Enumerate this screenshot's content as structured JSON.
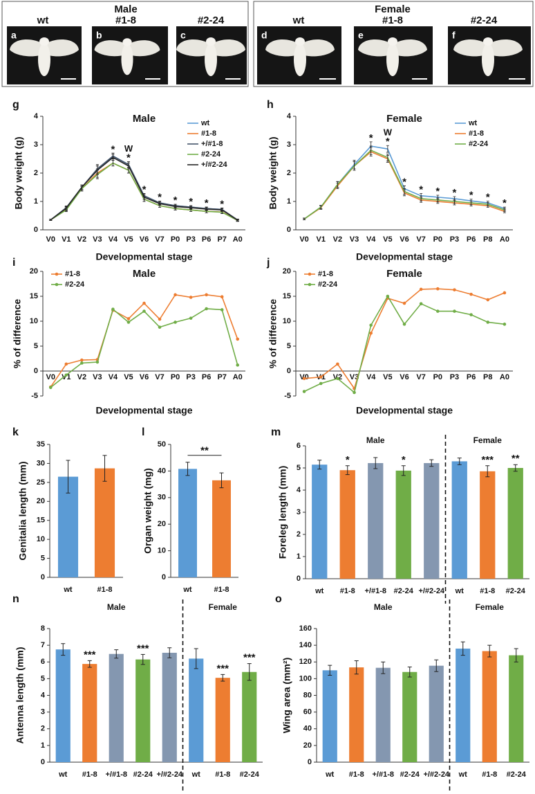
{
  "photos": {
    "male": {
      "title": "Male",
      "panels": [
        {
          "letter": "a",
          "label": "wt"
        },
        {
          "letter": "b",
          "label": "#1-8"
        },
        {
          "letter": "c",
          "label": "#2-24"
        }
      ]
    },
    "female": {
      "title": "Female",
      "panels": [
        {
          "letter": "d",
          "label": "wt"
        },
        {
          "letter": "e",
          "label": "#1-8"
        },
        {
          "letter": "f",
          "label": "#2-24"
        }
      ]
    }
  },
  "chart_data": [
    {
      "type": "line",
      "letter": "g",
      "title": "Male",
      "y_label": "Body weight (g)",
      "x_label": "Developmental stage",
      "categories": [
        "V0",
        "V1",
        "V2",
        "V3",
        "V4",
        "V5",
        "V6",
        "V7",
        "P0",
        "P3",
        "P6",
        "P7",
        "A0"
      ],
      "ylim": [
        0,
        4
      ],
      "yticks": [
        0,
        1,
        2,
        3,
        4
      ],
      "legend": "upper right",
      "markers": false,
      "series": [
        {
          "name": "wt",
          "color": "#5b9bd5",
          "values": [
            0.35,
            0.75,
            1.5,
            2.1,
            2.6,
            2.3,
            1.2,
            0.95,
            0.85,
            0.8,
            0.75,
            0.72,
            0.33
          ],
          "errors": [
            0.02,
            0.06,
            0.08,
            0.15,
            0.1,
            0.1,
            0.08,
            0.06,
            0.05,
            0.05,
            0.05,
            0.05,
            0.03
          ]
        },
        {
          "name": "#1-8",
          "color": "#ed7d31",
          "values": [
            0.35,
            0.72,
            1.45,
            2.0,
            2.35,
            2.1,
            1.08,
            0.85,
            0.75,
            0.7,
            0.65,
            0.63,
            0.33
          ],
          "errors": [
            0.02,
            0.06,
            0.08,
            0.15,
            0.1,
            0.1,
            0.08,
            0.06,
            0.05,
            0.05,
            0.05,
            0.05,
            0.03
          ]
        },
        {
          "name": "+/#1-8",
          "color": "#44546a",
          "values": [
            0.35,
            0.78,
            1.5,
            2.15,
            2.6,
            2.3,
            1.2,
            0.95,
            0.85,
            0.8,
            0.75,
            0.72,
            0.35
          ],
          "errors": [
            0.02,
            0.06,
            0.08,
            0.15,
            0.1,
            0.1,
            0.08,
            0.06,
            0.05,
            0.05,
            0.05,
            0.05,
            0.03
          ]
        },
        {
          "name": "#2-24",
          "color": "#70ad47",
          "values": [
            0.35,
            0.7,
            1.45,
            1.95,
            2.35,
            2.1,
            1.08,
            0.85,
            0.75,
            0.7,
            0.65,
            0.62,
            0.33
          ],
          "errors": [
            0.02,
            0.06,
            0.08,
            0.15,
            0.1,
            0.1,
            0.08,
            0.06,
            0.05,
            0.05,
            0.05,
            0.05,
            0.03
          ]
        },
        {
          "name": "+/#2-24",
          "color": "#262626",
          "values": [
            0.35,
            0.76,
            1.5,
            2.1,
            2.55,
            2.25,
            1.15,
            0.92,
            0.82,
            0.78,
            0.73,
            0.7,
            0.34
          ],
          "errors": [
            0.02,
            0.06,
            0.08,
            0.15,
            0.1,
            0.1,
            0.08,
            0.06,
            0.05,
            0.05,
            0.05,
            0.05,
            0.03
          ]
        }
      ],
      "significance": [
        null,
        null,
        null,
        null,
        "*",
        "*",
        "*",
        "*",
        "*",
        "*",
        "*",
        "*",
        null
      ],
      "significance_top": [
        null,
        null,
        null,
        null,
        null,
        "W",
        null,
        null,
        null,
        null,
        null,
        null,
        null
      ]
    },
    {
      "type": "line",
      "letter": "h",
      "title": "Female",
      "y_label": "Body weight (g)",
      "x_label": "Developmental stage",
      "categories": [
        "V0",
        "V1",
        "V2",
        "V3",
        "V4",
        "V5",
        "V6",
        "V7",
        "P0",
        "P3",
        "P6",
        "P8",
        "A0"
      ],
      "ylim": [
        0,
        4
      ],
      "yticks": [
        0,
        1,
        2,
        3,
        4
      ],
      "legend": "upper right",
      "markers": false,
      "series": [
        {
          "name": "wt",
          "color": "#5b9bd5",
          "values": [
            0.38,
            0.8,
            1.6,
            2.3,
            2.95,
            2.85,
            1.45,
            1.2,
            1.15,
            1.1,
            1.02,
            0.95,
            0.75
          ],
          "errors": [
            0.03,
            0.06,
            0.1,
            0.15,
            0.15,
            0.12,
            0.1,
            0.08,
            0.07,
            0.07,
            0.06,
            0.06,
            0.05
          ]
        },
        {
          "name": "#1-8",
          "color": "#ed7d31",
          "values": [
            0.38,
            0.78,
            1.55,
            2.25,
            2.75,
            2.5,
            1.3,
            1.05,
            1.0,
            0.95,
            0.9,
            0.85,
            0.65
          ],
          "errors": [
            0.03,
            0.06,
            0.1,
            0.15,
            0.15,
            0.12,
            0.1,
            0.08,
            0.07,
            0.07,
            0.06,
            0.06,
            0.05
          ]
        },
        {
          "name": "#2-24",
          "color": "#70ad47",
          "values": [
            0.38,
            0.8,
            1.6,
            2.25,
            2.8,
            2.55,
            1.35,
            1.1,
            1.05,
            1.0,
            0.95,
            0.9,
            0.7
          ],
          "errors": [
            0.03,
            0.06,
            0.1,
            0.15,
            0.15,
            0.12,
            0.1,
            0.08,
            0.07,
            0.07,
            0.06,
            0.06,
            0.05
          ]
        }
      ],
      "significance": [
        null,
        null,
        null,
        null,
        "*",
        "*",
        "*",
        "*",
        "*",
        "*",
        "*",
        "*",
        "*"
      ],
      "significance_top": [
        null,
        null,
        null,
        null,
        null,
        "W",
        null,
        null,
        null,
        null,
        null,
        null,
        null
      ]
    },
    {
      "type": "line",
      "letter": "i",
      "title": "Male",
      "y_label": "% of difference",
      "x_label": "Developmental stage",
      "categories": [
        "V0",
        "V1",
        "V2",
        "V3",
        "V4",
        "V5",
        "V6",
        "V7",
        "P0",
        "P3",
        "P6",
        "P7",
        "A0"
      ],
      "ylim": [
        -5,
        20
      ],
      "yticks": [
        -5,
        0,
        5,
        10,
        15,
        20
      ],
      "legend": "upper left",
      "markers": true,
      "series": [
        {
          "name": "#1-8",
          "color": "#ed7d31",
          "values": [
            -3.2,
            1.4,
            2.2,
            2.3,
            12.2,
            10.5,
            13.6,
            10.4,
            15.3,
            14.8,
            15.3,
            14.9,
            6.4
          ]
        },
        {
          "name": "#2-24",
          "color": "#70ad47",
          "values": [
            -3.3,
            -0.8,
            1.6,
            1.8,
            12.4,
            9.8,
            12.0,
            8.8,
            9.8,
            10.6,
            12.5,
            12.3,
            1.2
          ]
        }
      ]
    },
    {
      "type": "line",
      "letter": "j",
      "title": "Female",
      "y_label": "% of difference",
      "x_label": "Developmental stage",
      "categories": [
        "V0",
        "V1",
        "V2",
        "V3",
        "V4",
        "V5",
        "V6",
        "V7",
        "P0",
        "P3",
        "P6",
        "P8",
        "A0"
      ],
      "ylim": [
        -5,
        20
      ],
      "yticks": [
        -5,
        0,
        5,
        10,
        15,
        20
      ],
      "legend": "upper left",
      "markers": true,
      "series": [
        {
          "name": "#1-8",
          "color": "#ed7d31",
          "values": [
            -1.5,
            -1.2,
            1.4,
            -3.5,
            7.6,
            14.6,
            13.6,
            16.4,
            16.5,
            16.3,
            15.4,
            14.3,
            15.7
          ]
        },
        {
          "name": "#2-24",
          "color": "#70ad47",
          "values": [
            -4.1,
            -2.5,
            -1.5,
            -4.3,
            9.2,
            15.0,
            9.4,
            13.5,
            12.0,
            12.0,
            11.3,
            9.8,
            9.4
          ]
        }
      ]
    },
    {
      "type": "bar",
      "letter": "k",
      "y_label": "Genitalia length (mm)",
      "categories": [
        "wt",
        "#1-8"
      ],
      "values": [
        26.5,
        28.7
      ],
      "errors": [
        4.3,
        3.4
      ],
      "colors": [
        "#5b9bd5",
        "#ed7d31"
      ],
      "ylim": [
        0,
        35
      ],
      "yticks": [
        0,
        5,
        10,
        15,
        20,
        25,
        30,
        35
      ]
    },
    {
      "type": "bar",
      "letter": "l",
      "y_label": "Organ weight (mg)",
      "categories": [
        "wt",
        "#1-8"
      ],
      "values": [
        40.8,
        36.5
      ],
      "errors": [
        2.5,
        2.8
      ],
      "colors": [
        "#5b9bd5",
        "#ed7d31"
      ],
      "significance": "**",
      "ylim": [
        0,
        50
      ],
      "yticks": [
        0,
        10,
        20,
        30,
        40,
        50
      ]
    },
    {
      "type": "bar",
      "letter": "m",
      "y_label": "Foreleg length (mm)",
      "ylim": [
        0,
        6
      ],
      "yticks": [
        0,
        1,
        2,
        3,
        4,
        5,
        6
      ],
      "groups": [
        {
          "name": "Male",
          "categories": [
            "wt",
            "#1-8",
            "+/#1-8",
            "#2-24",
            "+/#2-24"
          ],
          "values": [
            5.15,
            4.9,
            5.22,
            4.88,
            5.22
          ],
          "errors": [
            0.2,
            0.2,
            0.25,
            0.22,
            0.15
          ],
          "colors": [
            "#5b9bd5",
            "#ed7d31",
            "#8497b0",
            "#70ad47",
            "#8497b0"
          ],
          "significance": [
            null,
            "*",
            null,
            "*",
            null
          ]
        },
        {
          "name": "Female",
          "categories": [
            "wt",
            "#1-8",
            "#2-24"
          ],
          "values": [
            5.3,
            4.85,
            5.0
          ],
          "errors": [
            0.15,
            0.25,
            0.15
          ],
          "colors": [
            "#5b9bd5",
            "#ed7d31",
            "#70ad47"
          ],
          "significance": [
            null,
            "***",
            "**"
          ]
        }
      ]
    },
    {
      "type": "bar",
      "letter": "n",
      "y_label": "Antenna length (mm)",
      "ylim": [
        0,
        8
      ],
      "yticks": [
        0,
        1,
        2,
        3,
        4,
        5,
        6,
        7,
        8
      ],
      "groups": [
        {
          "name": "Male",
          "categories": [
            "wt",
            "#1-8",
            "+/#1-8",
            "#2-24",
            "+/#2-24"
          ],
          "values": [
            6.75,
            5.88,
            6.48,
            6.15,
            6.55
          ],
          "errors": [
            0.35,
            0.2,
            0.25,
            0.3,
            0.3
          ],
          "colors": [
            "#5b9bd5",
            "#ed7d31",
            "#8497b0",
            "#70ad47",
            "#8497b0"
          ],
          "significance": [
            null,
            "***",
            null,
            "***",
            null
          ]
        },
        {
          "name": "Female",
          "categories": [
            "wt",
            "#1-8",
            "#2-24"
          ],
          "values": [
            6.2,
            5.05,
            5.4
          ],
          "errors": [
            0.6,
            0.2,
            0.5
          ],
          "colors": [
            "#5b9bd5",
            "#ed7d31",
            "#70ad47"
          ],
          "significance": [
            null,
            "***",
            "***"
          ]
        }
      ]
    },
    {
      "type": "bar",
      "letter": "o",
      "y_label": "Wing area (mm²)",
      "ylim": [
        0,
        160
      ],
      "yticks": [
        0,
        20,
        40,
        60,
        80,
        100,
        120,
        140,
        160
      ],
      "groups": [
        {
          "name": "Male",
          "categories": [
            "wt",
            "#1-8",
            "+/#1-8",
            "#2-24",
            "+/#2-24"
          ],
          "values": [
            110,
            113.5,
            113,
            108,
            115.5
          ],
          "errors": [
            6,
            8,
            7,
            6,
            7
          ],
          "colors": [
            "#5b9bd5",
            "#ed7d31",
            "#8497b0",
            "#70ad47",
            "#8497b0"
          ]
        },
        {
          "name": "Female",
          "categories": [
            "wt",
            "#1-8",
            "#2-24"
          ],
          "values": [
            136,
            133,
            128
          ],
          "errors": [
            8,
            7,
            8
          ],
          "colors": [
            "#5b9bd5",
            "#ed7d31",
            "#70ad47"
          ]
        }
      ]
    }
  ]
}
